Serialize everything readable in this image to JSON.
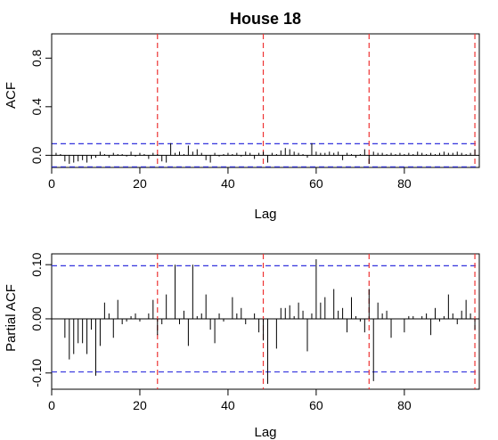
{
  "chart_data": [
    {
      "type": "bar",
      "title": "House  18",
      "xlabel": "Lag",
      "ylabel": "ACF",
      "xlim": [
        0,
        97
      ],
      "ylim": [
        -0.1,
        1.0
      ],
      "x_ticks": [
        "0",
        "20",
        "40",
        "60",
        "80"
      ],
      "y_ticks": [
        "0.0",
        "0.4",
        "0.8"
      ],
      "zero_line": true,
      "confidence_bound": 0.095,
      "confidence_color": "#3333dd",
      "seasonal_lags": [
        24,
        48,
        72,
        96
      ],
      "seasonal_color": "#ee3333",
      "lags_start": 0,
      "values": [
        1.0,
        0.02,
        0.01,
        -0.05,
        -0.07,
        -0.06,
        -0.05,
        -0.04,
        -0.06,
        -0.03,
        -0.02,
        0.03,
        0.01,
        -0.02,
        0.02,
        0.01,
        0.01,
        -0.01,
        0.03,
        -0.01,
        0.02,
        0.01,
        -0.03,
        0.02,
        0.01,
        -0.05,
        -0.06,
        0.1,
        0.02,
        0.03,
        0.01,
        0.08,
        0.03,
        0.05,
        0.02,
        -0.04,
        -0.06,
        0.02,
        -0.01,
        0.01,
        0.02,
        0.01,
        0.02,
        -0.01,
        0.03,
        0.02,
        -0.03,
        0.02,
        0.03,
        -0.06,
        0.02,
        0.01,
        0.04,
        0.06,
        0.05,
        0.03,
        0.02,
        0.01,
        -0.02,
        0.1,
        0.03,
        0.02,
        0.02,
        0.03,
        0.02,
        0.03,
        -0.04,
        0.02,
        0.01,
        -0.02,
        0.01,
        0.05,
        -0.07,
        0.03,
        0.02,
        0.02,
        0.01,
        0.02,
        0.01,
        0.02,
        0.01,
        0.02,
        0.01,
        0.03,
        0.02,
        0.01,
        0.02,
        0.01,
        0.02,
        0.03,
        0.02,
        0.02,
        0.03,
        0.02,
        0.01,
        0.02,
        0.05
      ]
    },
    {
      "type": "bar",
      "title": "",
      "xlabel": "Lag",
      "ylabel": "Partial ACF",
      "xlim": [
        0,
        97
      ],
      "ylim": [
        -0.13,
        0.12
      ],
      "x_ticks": [
        "0",
        "20",
        "40",
        "60",
        "80"
      ],
      "y_ticks": [
        "-0.10",
        "0.00",
        "0.10"
      ],
      "zero_line": true,
      "confidence_bound": 0.098,
      "confidence_color": "#3333dd",
      "seasonal_lags": [
        24,
        48,
        72,
        96
      ],
      "seasonal_color": "#ee3333",
      "lags_start": 1,
      "values": [
        0.0,
        0.0,
        -0.035,
        -0.075,
        -0.065,
        -0.045,
        -0.045,
        -0.065,
        -0.02,
        -0.105,
        -0.05,
        0.03,
        0.01,
        -0.035,
        0.035,
        -0.01,
        -0.005,
        0.005,
        0.01,
        -0.005,
        0.0,
        0.01,
        0.035,
        -0.03,
        -0.01,
        0.045,
        0.0,
        0.1,
        -0.01,
        0.015,
        -0.05,
        0.1,
        0.005,
        0.01,
        0.045,
        -0.02,
        -0.045,
        0.01,
        -0.005,
        0.0,
        0.04,
        0.01,
        0.02,
        -0.01,
        0.0,
        0.01,
        -0.025,
        -0.04,
        -0.12,
        0.0,
        -0.055,
        0.02,
        0.02,
        0.025,
        0.005,
        0.03,
        0.015,
        -0.06,
        0.01,
        0.11,
        0.03,
        0.04,
        0.0,
        0.055,
        0.015,
        0.02,
        -0.025,
        0.04,
        0.005,
        -0.005,
        -0.025,
        0.055,
        -0.115,
        0.03,
        0.01,
        0.015,
        -0.035,
        0.0,
        0.0,
        -0.025,
        0.005,
        0.005,
        0.0,
        0.005,
        0.01,
        -0.03,
        0.02,
        -0.005,
        0.005,
        0.045,
        0.01,
        -0.01,
        0.015,
        0.035,
        0.01,
        -0.02,
        0.035
      ]
    }
  ]
}
